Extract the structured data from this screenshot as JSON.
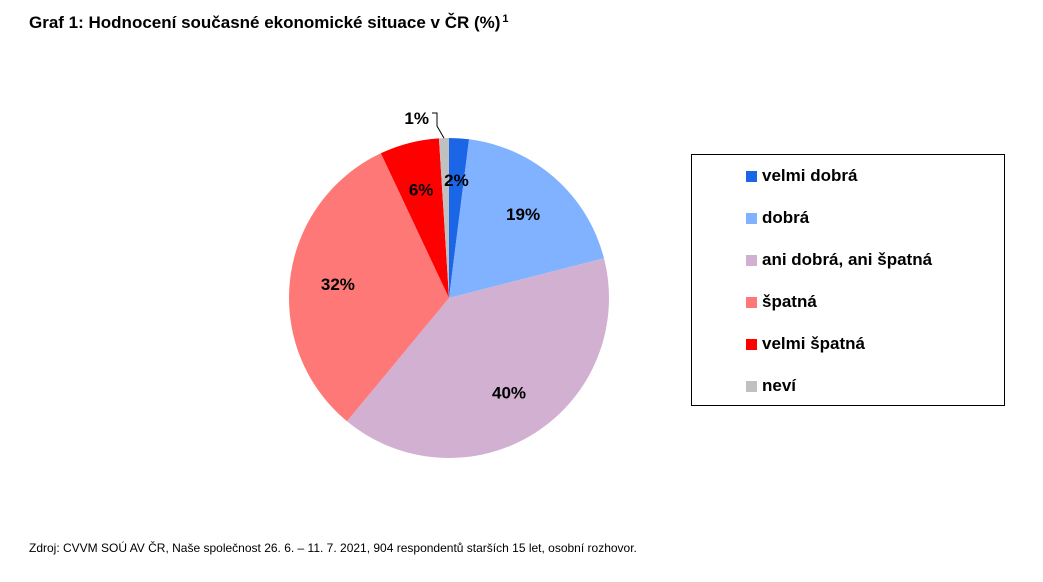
{
  "chart_data": {
    "type": "pie",
    "title": "Graf 1: Hodnocení současné ekonomické situace v ČR (%)",
    "title_footnote": "1",
    "categories": [
      "velmi dobrá",
      "dobrá",
      "ani dobrá, ani špatná",
      "špatná",
      "velmi špatná",
      "neví"
    ],
    "values": [
      2,
      19,
      40,
      32,
      6,
      1
    ],
    "labels": [
      "2%",
      "19%",
      "40%",
      "32%",
      "6%",
      "1%"
    ],
    "colors": [
      "#1a66e6",
      "#80b2ff",
      "#d2b0d2",
      "#ff7878",
      "#ff0000",
      "#c0c0c0"
    ],
    "legend_position": "right",
    "start_angle": "top, clockwise"
  },
  "source": "Zdroj: CVVM SOÚ AV ČR, Naše společnost 26. 6. – 11. 7. 2021, 904 respondentů starších 15 let, osobní rozhovor."
}
